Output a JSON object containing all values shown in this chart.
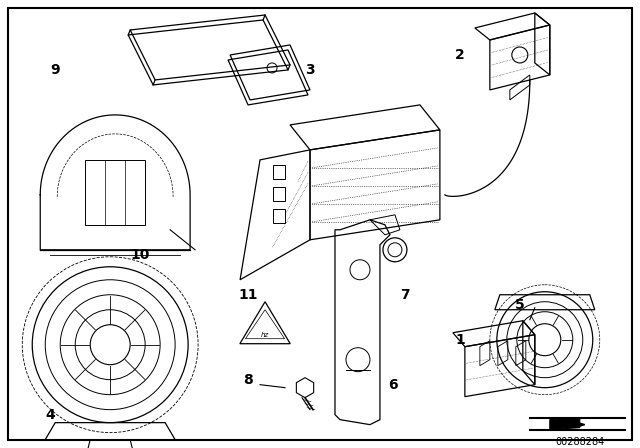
{
  "background_color": "#ffffff",
  "line_color": "#000000",
  "diagram_id": "00288284",
  "figsize": [
    6.4,
    4.48
  ],
  "dpi": 100
}
